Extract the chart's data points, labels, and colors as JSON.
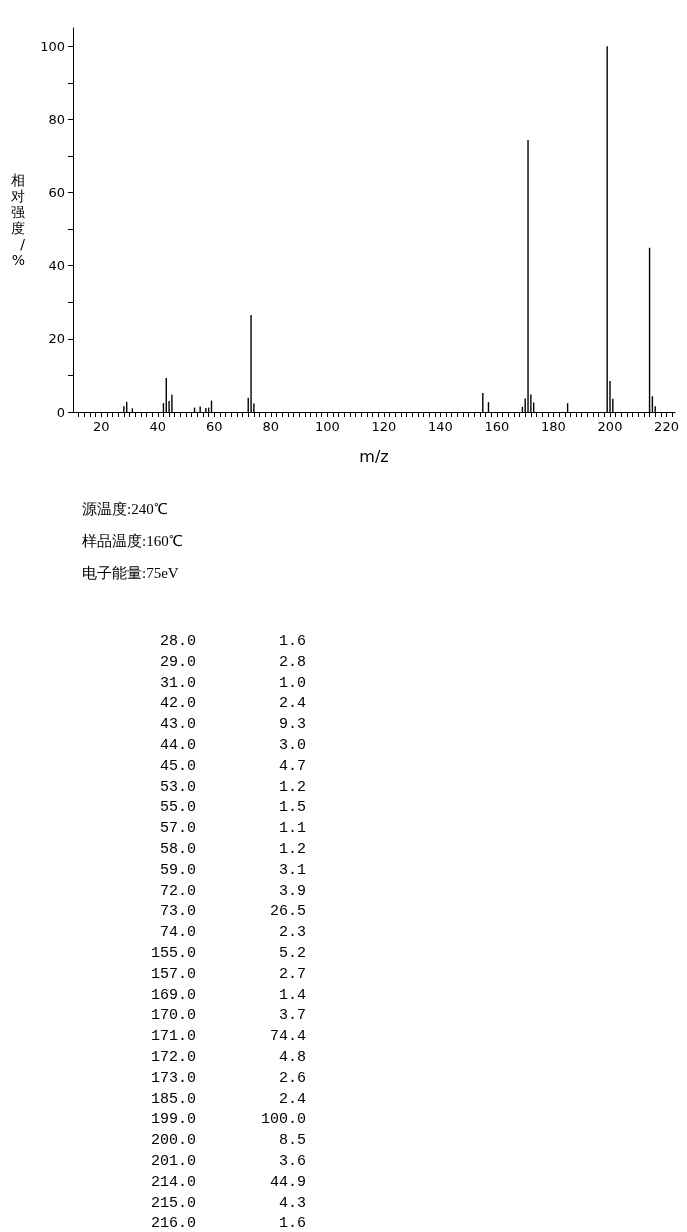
{
  "chart_data": [
    {
      "type": "bar",
      "xlabel": "m/z",
      "ylabel": "相对强度/%",
      "x": [
        28,
        29,
        31,
        42,
        43,
        44,
        45,
        53,
        55,
        57,
        58,
        59,
        72,
        73,
        74,
        155,
        157,
        169,
        170,
        171,
        172,
        173,
        185,
        199,
        200,
        201,
        214,
        215,
        216
      ],
      "values": [
        1.6,
        2.8,
        1.0,
        2.4,
        9.3,
        3.0,
        4.7,
        1.2,
        1.5,
        1.1,
        1.2,
        3.1,
        3.9,
        26.5,
        2.3,
        5.2,
        2.7,
        1.4,
        3.7,
        74.4,
        4.8,
        2.6,
        2.4,
        100.0,
        8.5,
        3.6,
        44.9,
        4.3,
        1.6
      ],
      "color": "#000000",
      "xlim": [
        10,
        223
      ],
      "ylim": [
        0,
        105
      ],
      "xticks": [
        {
          "value": 12,
          "label": null
        },
        {
          "value": 14,
          "label": null
        },
        {
          "value": 16,
          "label": null
        },
        {
          "value": 18,
          "label": null
        },
        20,
        {
          "value": 22,
          "label": null
        },
        {
          "value": 24,
          "label": null
        },
        {
          "value": 26,
          "label": null
        },
        {
          "value": 28,
          "label": null
        },
        {
          "value": 30,
          "label": null
        },
        {
          "value": 32,
          "label": null
        },
        {
          "value": 34,
          "label": null
        },
        {
          "value": 36,
          "label": null
        },
        {
          "value": 38,
          "label": null
        },
        40,
        {
          "value": 42,
          "label": null
        },
        {
          "value": 44,
          "label": null
        },
        {
          "value": 46,
          "label": null
        },
        {
          "value": 48,
          "label": null
        },
        {
          "value": 50,
          "label": null
        },
        {
          "value": 52,
          "label": null
        },
        {
          "value": 54,
          "label": null
        },
        {
          "value": 56,
          "label": null
        },
        {
          "value": 58,
          "label": null
        },
        60,
        {
          "value": 62,
          "label": null
        },
        {
          "value": 64,
          "label": null
        },
        {
          "value": 66,
          "label": null
        },
        {
          "value": 68,
          "label": null
        },
        {
          "value": 70,
          "label": null
        },
        {
          "value": 72,
          "label": null
        },
        {
          "value": 74,
          "label": null
        },
        {
          "value": 76,
          "label": null
        },
        {
          "value": 78,
          "label": null
        },
        80,
        {
          "value": 82,
          "label": null
        },
        {
          "value": 84,
          "label": null
        },
        {
          "value": 86,
          "label": null
        },
        {
          "value": 88,
          "label": null
        },
        {
          "value": 90,
          "label": null
        },
        {
          "value": 92,
          "label": null
        },
        {
          "value": 94,
          "label": null
        },
        {
          "value": 96,
          "label": null
        },
        {
          "value": 98,
          "label": null
        },
        100,
        {
          "value": 102,
          "label": null
        },
        {
          "value": 104,
          "label": null
        },
        {
          "value": 106,
          "label": null
        },
        {
          "value": 108,
          "label": null
        },
        {
          "value": 110,
          "label": null
        },
        {
          "value": 112,
          "label": null
        },
        {
          "value": 114,
          "label": null
        },
        {
          "value": 116,
          "label": null
        },
        {
          "value": 118,
          "label": null
        },
        120,
        {
          "value": 122,
          "label": null
        },
        {
          "value": 124,
          "label": null
        },
        {
          "value": 126,
          "label": null
        },
        {
          "value": 128,
          "label": null
        },
        {
          "value": 130,
          "label": null
        },
        {
          "value": 132,
          "label": null
        },
        {
          "value": 134,
          "label": null
        },
        {
          "value": 136,
          "label": null
        },
        {
          "value": 138,
          "label": null
        },
        140,
        {
          "value": 142,
          "label": null
        },
        {
          "value": 144,
          "label": null
        },
        {
          "value": 146,
          "label": null
        },
        {
          "value": 148,
          "label": null
        },
        {
          "value": 150,
          "label": null
        },
        {
          "value": 152,
          "label": null
        },
        {
          "value": 154,
          "label": null
        },
        {
          "value": 156,
          "label": null
        },
        {
          "value": 158,
          "label": null
        },
        160,
        {
          "value": 162,
          "label": null
        },
        {
          "value": 164,
          "label": null
        },
        {
          "value": 166,
          "label": null
        },
        {
          "value": 168,
          "label": null
        },
        {
          "value": 170,
          "label": null
        },
        {
          "value": 172,
          "label": null
        },
        {
          "value": 174,
          "label": null
        },
        {
          "value": 176,
          "label": null
        },
        {
          "value": 178,
          "label": null
        },
        180,
        {
          "value": 182,
          "label": null
        },
        {
          "value": 184,
          "label": null
        },
        {
          "value": 186,
          "label": null
        },
        {
          "value": 188,
          "label": null
        },
        {
          "value": 190,
          "label": null
        },
        {
          "value": 192,
          "label": null
        },
        {
          "value": 194,
          "label": null
        },
        {
          "value": 196,
          "label": null
        },
        {
          "value": 198,
          "label": null
        },
        200,
        {
          "value": 202,
          "label": null
        },
        {
          "value": 204,
          "label": null
        },
        {
          "value": 206,
          "label": null
        },
        {
          "value": 208,
          "label": null
        },
        {
          "value": 210,
          "label": null
        },
        {
          "value": 212,
          "label": null
        },
        {
          "value": 214,
          "label": null
        },
        {
          "value": 216,
          "label": null
        },
        {
          "value": 218,
          "label": null
        },
        220,
        {
          "value": 222,
          "label": null
        }
      ],
      "yticks": [
        0,
        {
          "value": 10,
          "label": null
        },
        20,
        {
          "value": 30,
          "label": null
        },
        40,
        {
          "value": 50,
          "label": null
        },
        60,
        {
          "value": 70,
          "label": null
        },
        80,
        {
          "value": 90,
          "label": null
        },
        100
      ],
      "grid": false,
      "annotations": [
        "源温度:240℃",
        "样品温度:160℃",
        "电子能量:75eV"
      ]
    },
    {
      "type": "other",
      "annotations": [
        "28.0",
        "1.6",
        "29.0",
        "2.8",
        "31.0",
        "1.0",
        "42.0",
        "2.4",
        "43.0",
        "9.3",
        "44.0",
        "3.0",
        "45.0",
        "4.7",
        "53.0",
        "1.2",
        "55.0",
        "1.5",
        "57.0",
        "1.1",
        "58.0",
        "1.2",
        "59.0",
        "3.1",
        "72.0",
        "3.9",
        "73.0",
        "26.5",
        "74.0",
        "2.3",
        "155.0",
        "5.2",
        "157.0",
        "2.7",
        "169.0",
        "1.4",
        "170.0",
        "3.7",
        "171.0",
        "74.4",
        "172.0",
        "4.8",
        "173.0",
        "2.6",
        "185.0",
        "2.4",
        "199.0",
        "100.0",
        "200.0",
        "8.5",
        "201.0",
        "3.6",
        "214.0",
        "44.9",
        "215.0",
        "4.3",
        "216.0",
        "1.6"
      ]
    }
  ]
}
